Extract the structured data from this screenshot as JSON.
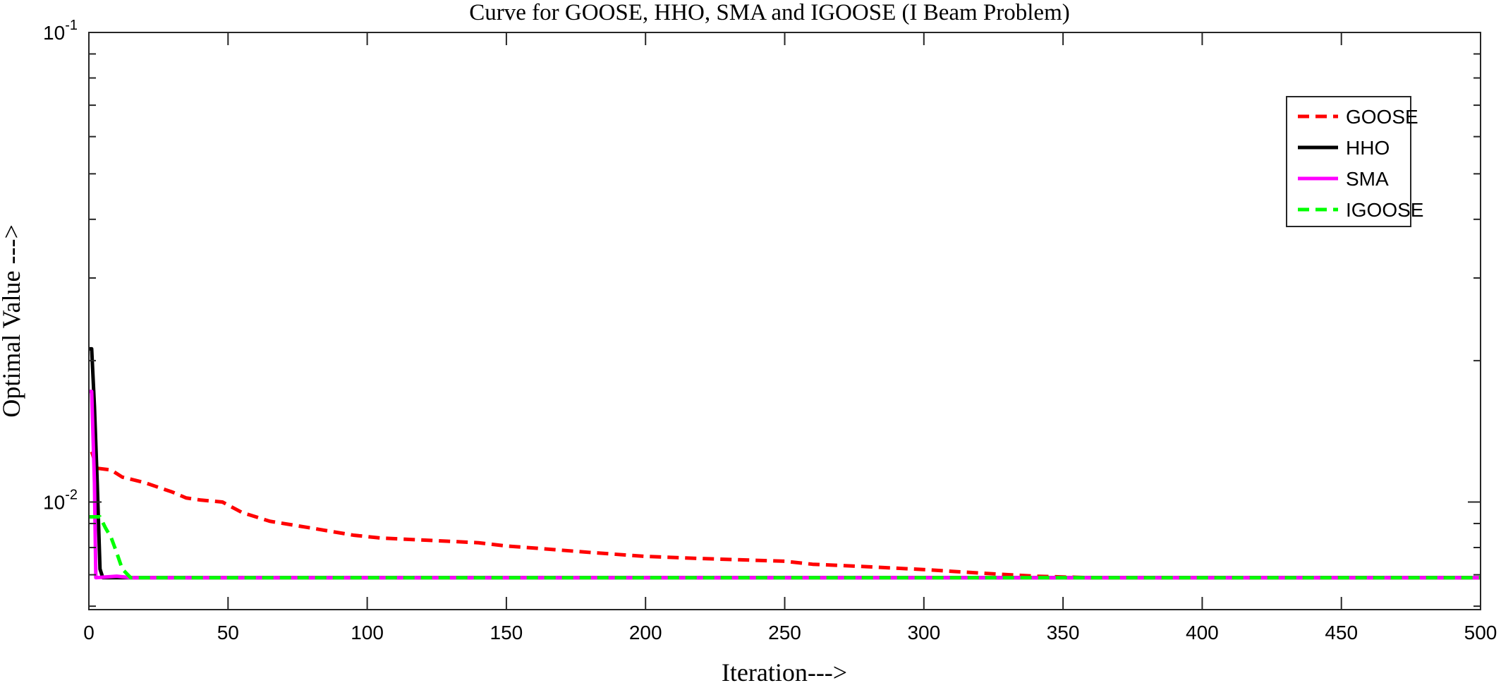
{
  "chart_data": {
    "type": "line",
    "title": "Curve for GOOSE, HHO, SMA and IGOOSE (I Beam Problem)",
    "xlabel": "Iteration--->",
    "ylabel": "Optimal Value --->",
    "xlim": [
      0,
      500
    ],
    "ylim": [
      0.0059,
      0.1
    ],
    "yscale": "log",
    "grid": false,
    "legend_position": "top-right",
    "x_ticks": [
      0,
      50,
      100,
      150,
      200,
      250,
      300,
      350,
      400,
      450,
      500
    ],
    "y_ticks": [
      {
        "value": 0.01,
        "base": "10",
        "exp": "-2"
      },
      {
        "value": 0.1,
        "base": "10",
        "exp": "-1"
      }
    ],
    "series": [
      {
        "name": "GOOSE",
        "color": "#ff0000",
        "dash": "dashed",
        "points": [
          [
            1,
            0.0128
          ],
          [
            3,
            0.0118
          ],
          [
            8,
            0.0117
          ],
          [
            12,
            0.0113
          ],
          [
            20,
            0.011
          ],
          [
            30,
            0.0105
          ],
          [
            35,
            0.0102
          ],
          [
            40,
            0.0101
          ],
          [
            48,
            0.01
          ],
          [
            55,
            0.0095
          ],
          [
            65,
            0.0091
          ],
          [
            80,
            0.0088
          ],
          [
            95,
            0.0085
          ],
          [
            105,
            0.00838
          ],
          [
            120,
            0.0083
          ],
          [
            140,
            0.00819
          ],
          [
            150,
            0.00806
          ],
          [
            160,
            0.00798
          ],
          [
            180,
            0.00781
          ],
          [
            200,
            0.00766
          ],
          [
            220,
            0.00758
          ],
          [
            250,
            0.00748
          ],
          [
            260,
            0.00737
          ],
          [
            280,
            0.00728
          ],
          [
            300,
            0.00718
          ],
          [
            320,
            0.00706
          ],
          [
            340,
            0.00695
          ],
          [
            360,
            0.0069
          ],
          [
            400,
            0.0069
          ],
          [
            450,
            0.0069
          ],
          [
            500,
            0.0069
          ]
        ]
      },
      {
        "name": "HHO",
        "color": "#000000",
        "dash": "solid",
        "points": [
          [
            0,
            0.0212
          ],
          [
            1,
            0.0212
          ],
          [
            2,
            0.016
          ],
          [
            3,
            0.011
          ],
          [
            4,
            0.0072
          ],
          [
            5,
            0.0069
          ],
          [
            15,
            0.0069
          ],
          [
            100,
            0.0069
          ],
          [
            200,
            0.0069
          ],
          [
            300,
            0.0069
          ],
          [
            400,
            0.0069
          ],
          [
            500,
            0.0069
          ]
        ]
      },
      {
        "name": "SMA",
        "color": "#ff00ff",
        "dash": "solid",
        "points": [
          [
            0,
            0.0172
          ],
          [
            1,
            0.0172
          ],
          [
            2,
            0.011
          ],
          [
            2.5,
            0.0069
          ],
          [
            10,
            0.00695
          ],
          [
            15,
            0.0069
          ],
          [
            100,
            0.0069
          ],
          [
            200,
            0.0069
          ],
          [
            300,
            0.0069
          ],
          [
            400,
            0.0069
          ],
          [
            500,
            0.0069
          ]
        ]
      },
      {
        "name": "IGOOSE",
        "color": "#00ff00",
        "dash": "dashed",
        "points": [
          [
            0,
            0.0093
          ],
          [
            4,
            0.0093
          ],
          [
            6,
            0.0088
          ],
          [
            8,
            0.0084
          ],
          [
            10,
            0.0078
          ],
          [
            12,
            0.0072
          ],
          [
            15,
            0.0069
          ],
          [
            100,
            0.0069
          ],
          [
            200,
            0.0069
          ],
          [
            300,
            0.0069
          ],
          [
            400,
            0.0069
          ],
          [
            500,
            0.0069
          ]
        ]
      }
    ]
  }
}
